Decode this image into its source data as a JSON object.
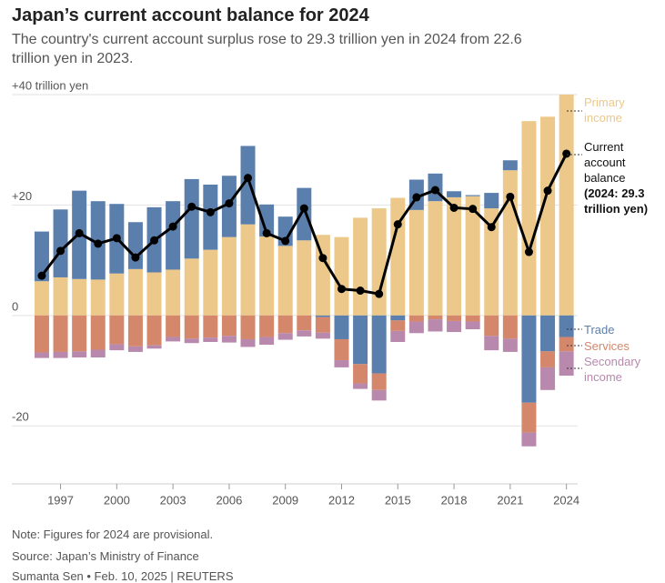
{
  "chart_data": {
    "type": "bar",
    "title": "Japan’s current account balance for 2024",
    "subtitle": "The country's current account surplus rose to 29.3 trillion yen in 2024 from 22.6 trillion yen in 2023.",
    "x": [
      1996,
      1997,
      1998,
      1999,
      2000,
      2001,
      2002,
      2003,
      2004,
      2005,
      2006,
      2007,
      2008,
      2009,
      2010,
      2011,
      2012,
      2013,
      2014,
      2015,
      2016,
      2017,
      2018,
      2019,
      2020,
      2021,
      2022,
      2023,
      2024
    ],
    "xlim": [
      1994.4,
      2024.6
    ],
    "xticks": [
      1997,
      2000,
      2003,
      2006,
      2009,
      2012,
      2015,
      2018,
      2021,
      2024
    ],
    "ylim": [
      -30,
      40
    ],
    "yticks": [
      {
        "value": 40,
        "label": "+40 trillion yen"
      },
      {
        "value": 20,
        "label": "+20"
      },
      0,
      -20
    ],
    "grid": true,
    "stacked": true,
    "series": [
      {
        "name": "Primary income",
        "type": "bar",
        "color": "#ecc98a",
        "values": [
          6.2,
          6.9,
          6.6,
          6.5,
          7.6,
          8.4,
          7.8,
          8.3,
          10.3,
          11.9,
          14.2,
          16.5,
          14.3,
          12.6,
          13.6,
          14.6,
          14.2,
          17.7,
          19.4,
          21.3,
          19.1,
          20.7,
          21.4,
          21.6,
          19.4,
          26.3,
          35.2,
          36.0,
          40.0
        ]
      },
      {
        "name": "Trade",
        "type": "bar",
        "color": "#5b7fad",
        "values": [
          9.0,
          12.3,
          16.0,
          14.2,
          12.6,
          8.5,
          11.8,
          12.4,
          14.4,
          11.8,
          11.1,
          14.2,
          5.8,
          5.3,
          9.5,
          -0.3,
          -4.3,
          -8.8,
          -10.5,
          -0.9,
          5.5,
          5.0,
          1.1,
          0.2,
          2.8,
          1.8,
          -15.8,
          -6.5,
          -3.9
        ]
      },
      {
        "name": "Services",
        "type": "bar",
        "color": "#d4876b",
        "values": [
          -6.7,
          -6.6,
          -6.5,
          -6.2,
          -5.2,
          -5.6,
          -5.4,
          -3.9,
          -4.2,
          -4.0,
          -3.7,
          -4.3,
          -3.9,
          -3.2,
          -2.7,
          -2.8,
          -3.8,
          -3.5,
          -3.0,
          -1.9,
          -1.1,
          -0.7,
          -1.0,
          -1.1,
          -3.7,
          -4.2,
          -5.4,
          -2.9,
          -2.6
        ]
      },
      {
        "name": "Secondary income",
        "type": "bar",
        "color": "#b889ad",
        "values": [
          -1.0,
          -1.1,
          -1.1,
          -1.4,
          -1.1,
          -1.0,
          -0.6,
          -0.8,
          -0.8,
          -0.8,
          -1.2,
          -1.4,
          -1.4,
          -1.2,
          -1.1,
          -1.1,
          -1.3,
          -1.0,
          -1.9,
          -2.0,
          -2.1,
          -2.2,
          -2.0,
          -1.4,
          -2.6,
          -2.4,
          -2.5,
          -4.1,
          -4.4
        ]
      },
      {
        "name": "Current account balance",
        "type": "line",
        "color": "#000000",
        "values": [
          7.2,
          11.7,
          14.9,
          13.0,
          14.0,
          10.5,
          13.6,
          16.1,
          19.7,
          18.7,
          20.3,
          24.9,
          14.9,
          13.5,
          19.4,
          10.4,
          4.8,
          4.5,
          3.9,
          16.5,
          21.4,
          22.7,
          19.5,
          19.3,
          16.0,
          21.5,
          11.5,
          22.6,
          29.3
        ]
      }
    ],
    "annotation": "(2024: 29.3 trillion yen)",
    "note": "Note: Figures for 2024 are provisional.",
    "source": "Source: Japan’s Ministry of Finance",
    "credit": "Sumanta Sen • Feb. 10, 2025 | REUTERS"
  }
}
